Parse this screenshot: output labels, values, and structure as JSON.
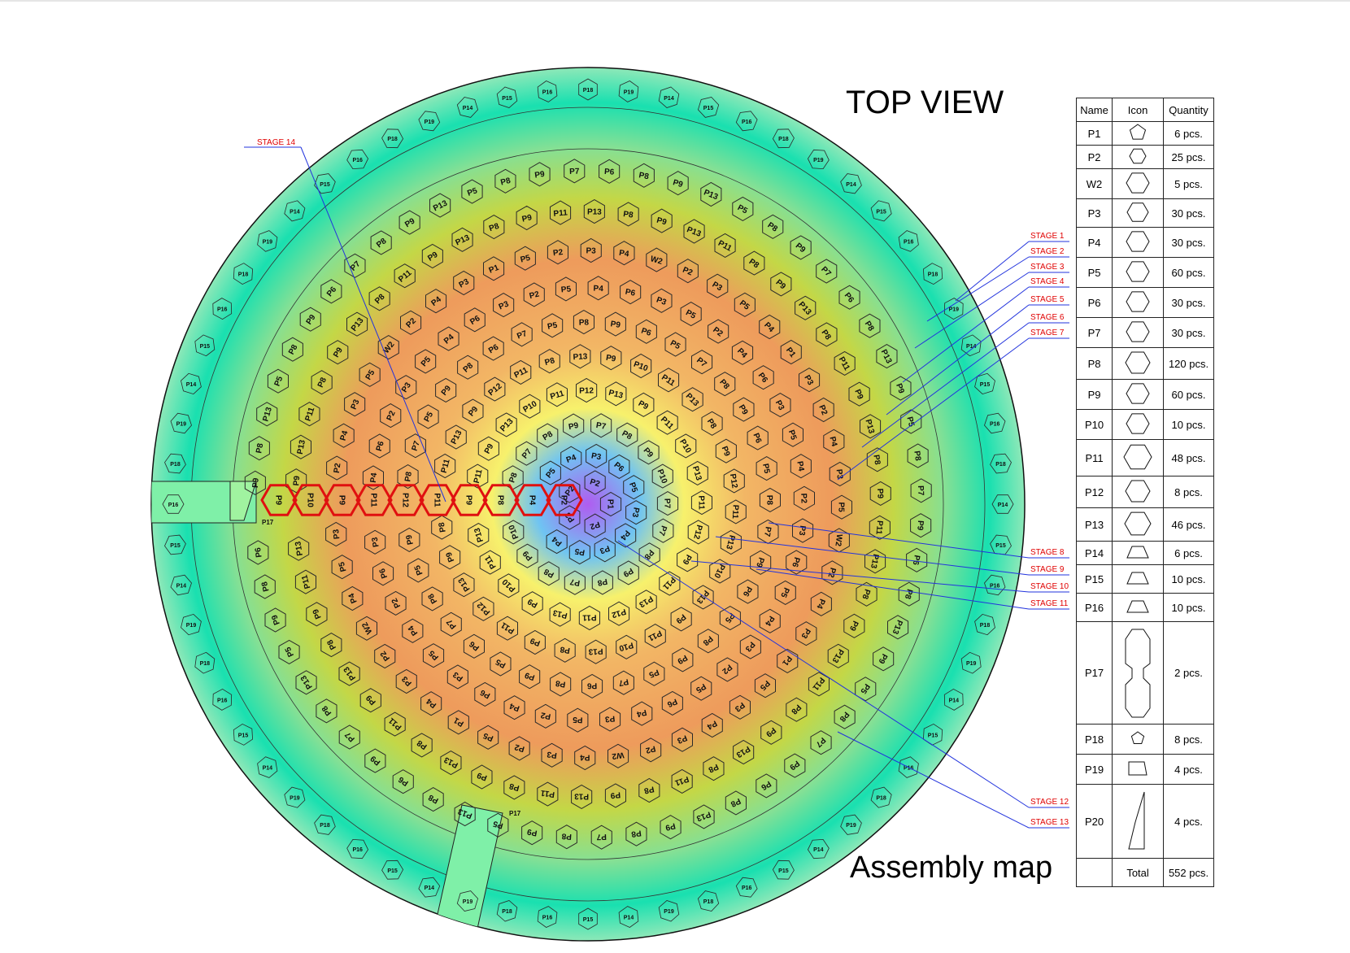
{
  "labels": {
    "top_view": "TOP VIEW",
    "assembly_map": "Assembly map"
  },
  "table": {
    "headers": [
      "Name",
      "Icon",
      "Quantity"
    ],
    "rows": [
      {
        "name": "P1",
        "qty": "6 pcs.",
        "icon": "pentagon-icon"
      },
      {
        "name": "P2",
        "qty": "25 pcs.",
        "icon": "hexagon-icon"
      },
      {
        "name": "W2",
        "qty": "5 pcs.",
        "icon": "hexagon-icon"
      },
      {
        "name": "P3",
        "qty": "30 pcs.",
        "icon": "hexagon-icon"
      },
      {
        "name": "P4",
        "qty": "30 pcs.",
        "icon": "hexagon-icon"
      },
      {
        "name": "P5",
        "qty": "60 pcs.",
        "icon": "hexagon-icon"
      },
      {
        "name": "P6",
        "qty": "30 pcs.",
        "icon": "hexagon-icon"
      },
      {
        "name": "P7",
        "qty": "30 pcs.",
        "icon": "hexagon-icon"
      },
      {
        "name": "P8",
        "qty": "120 pcs.",
        "icon": "hexagon-icon"
      },
      {
        "name": "P9",
        "qty": "60 pcs.",
        "icon": "hexagon-icon"
      },
      {
        "name": "P10",
        "qty": "10 pcs.",
        "icon": "hexagon-icon"
      },
      {
        "name": "P11",
        "qty": "48 pcs.",
        "icon": "hexagon-icon"
      },
      {
        "name": "P12",
        "qty": "8 pcs.",
        "icon": "hexagon-icon"
      },
      {
        "name": "P13",
        "qty": "46  pcs.",
        "icon": "hexagon-icon"
      },
      {
        "name": "P14",
        "qty": "6 pcs.",
        "icon": "trapezoid-icon"
      },
      {
        "name": "P15",
        "qty": "10 pcs.",
        "icon": "trapezoid-icon"
      },
      {
        "name": "P16",
        "qty": "10 pcs.",
        "icon": "trapezoid-icon"
      },
      {
        "name": "P17",
        "qty": "2 pcs.",
        "icon": "connector-icon"
      },
      {
        "name": "P18",
        "qty": "8 pcs.",
        "icon": "small-pentagon-icon"
      },
      {
        "name": "P19",
        "qty": "4 pcs.",
        "icon": "quad-icon"
      },
      {
        "name": "P20",
        "qty": "4 pcs.",
        "icon": "blade-icon"
      }
    ],
    "total_label": "Total",
    "total_qty": "552 pcs."
  },
  "stages": [
    "STAGE 1",
    "STAGE 2",
    "STAGE 3",
    "STAGE 4",
    "STAGE 5",
    "STAGE 6",
    "STAGE 7",
    "STAGE 8",
    "STAGE 9",
    "STAGE 10",
    "STAGE 11",
    "STAGE 12",
    "STAGE 13",
    "STAGE 14"
  ],
  "highlight_row": [
    "P9",
    "P10",
    "P9",
    "P11",
    "P12",
    "P11",
    "P9",
    "P8",
    "P4",
    "P2"
  ],
  "rings": [
    {
      "labels": [
        "P1",
        "P2",
        "P3",
        "P2",
        "P2"
      ],
      "color": "#c77ae6"
    },
    {
      "labels": [
        "P3",
        "P4",
        "P3",
        "P5",
        "P4",
        "P5",
        "P3",
        "P5",
        "P4",
        "P3",
        "P6",
        "P5"
      ],
      "color": "#7cc7ef"
    },
    {
      "labels": [
        "P7",
        "P8",
        "P9",
        "P8",
        "P7",
        "P8",
        "P9",
        "P10",
        "P9",
        "P8",
        "P7",
        "P8",
        "P9",
        "P7",
        "P8",
        "P9",
        "P10",
        "P7"
      ],
      "color": "#f5f07a"
    },
    {
      "labels": [
        "P9",
        "P11",
        "P13",
        "P12",
        "P11",
        "P13",
        "P9",
        "P10",
        "P11",
        "P13",
        "P12",
        "P11",
        "P9",
        "P13",
        "P10",
        "P11",
        "P12",
        "P13",
        "P9",
        "P11",
        "P10",
        "P13",
        "P11",
        "P12"
      ],
      "color": "#eadc5a"
    },
    {
      "labels": [
        "P13",
        "P9",
        "P11",
        "P10",
        "P13",
        "P8",
        "P9",
        "P11",
        "P12",
        "P13",
        "P9",
        "P8",
        "P10",
        "P11",
        "P13",
        "P9",
        "P12",
        "P11",
        "P8",
        "P13",
        "P9",
        "P10",
        "P11",
        "P13",
        "P8",
        "P9",
        "P12",
        "P11",
        "P13",
        "P10"
      ],
      "color": "#f3b866"
    },
    {
      "labels": [
        "P8",
        "P9",
        "P5",
        "P7",
        "P6",
        "P8",
        "P9",
        "P5",
        "P6",
        "P7",
        "P8",
        "P5",
        "P9",
        "P6",
        "P8",
        "P7",
        "P5",
        "P9",
        "P8",
        "P6",
        "P7",
        "P5",
        "P8",
        "P9",
        "P6",
        "P5",
        "P7",
        "P8",
        "P9",
        "P6",
        "P5",
        "P8",
        "P7",
        "P9",
        "P6",
        "P5"
      ],
      "color": "#f0a15c"
    },
    {
      "labels": [
        "P5",
        "P6",
        "P4",
        "P3",
        "P5",
        "P2",
        "P4",
        "P6",
        "P3",
        "P5",
        "P4",
        "P2",
        "P6",
        "P3",
        "P5",
        "P4",
        "P6",
        "P2",
        "P3",
        "P5",
        "P4",
        "P6",
        "P3",
        "P2",
        "P5",
        "P4",
        "P6",
        "P3",
        "P5",
        "P2",
        "P4",
        "P6",
        "P3",
        "P5",
        "P4",
        "P2",
        "P3",
        "P6",
        "P5",
        "P4",
        "P3",
        "P2"
      ],
      "color": "#e9ae5a"
    },
    {
      "labels": [
        "P3",
        "P2",
        "W2",
        "P4",
        "P3",
        "P2",
        "P5",
        "P1",
        "P4",
        "P3",
        "P2",
        "W2",
        "P4",
        "P5",
        "P3",
        "P1",
        "P2",
        "P4",
        "P3",
        "P5",
        "W2",
        "P2",
        "P4",
        "P3",
        "P1",
        "P5",
        "P2",
        "P3",
        "P4",
        "W2",
        "P2",
        "P3",
        "P5",
        "P4",
        "P1",
        "P3",
        "P2",
        "P4",
        "P3",
        "P5",
        "W2",
        "P2",
        "P4",
        "P3",
        "P1",
        "P5",
        "P3",
        "P4"
      ],
      "color": "#c8d94a"
    },
    {
      "labels": [
        "P8",
        "P9",
        "P13",
        "P11",
        "P8",
        "P9",
        "P13",
        "P8",
        "P11",
        "P9",
        "P13",
        "P8",
        "P9",
        "P11",
        "P13",
        "P8",
        "P9",
        "P13",
        "P11",
        "P8",
        "P9",
        "P13",
        "P8",
        "P11",
        "P9",
        "P13",
        "P8",
        "P9",
        "P11",
        "P13",
        "P8",
        "P9",
        "P13",
        "P11",
        "P8",
        "P9",
        "P13",
        "P8",
        "P11",
        "P9",
        "P13",
        "P8",
        "P9",
        "P11",
        "P13",
        "P8",
        "P9",
        "P13",
        "P11",
        "P8",
        "P9",
        "P13",
        "P8",
        "P11"
      ],
      "color": "#8fe0a0"
    },
    {
      "labels": [
        "P7",
        "P8",
        "P9",
        "P5",
        "P13",
        "P8",
        "P6",
        "P9",
        "P7",
        "P8",
        "P13",
        "P5",
        "P9",
        "P8",
        "P6",
        "P7",
        "P9",
        "P8",
        "P13",
        "P5",
        "P8",
        "P9",
        "P6",
        "P7",
        "P8",
        "P9",
        "P13",
        "P5",
        "P8",
        "P9",
        "P7",
        "P6",
        "P8",
        "P9",
        "P13",
        "P5",
        "P8",
        "P9",
        "P7",
        "P6",
        "P8",
        "P13",
        "P9",
        "P5",
        "P8",
        "P7",
        "P9",
        "P6",
        "P8",
        "P13",
        "P9",
        "P5",
        "P8",
        "P7",
        "P9",
        "P6",
        "P8",
        "P13",
        "P9",
        "P8"
      ],
      "color": "#93e6b8"
    }
  ],
  "edge_pieces": [
    "P14",
    "P15",
    "P16",
    "P18",
    "P19"
  ],
  "corridor_labels": [
    "P17",
    "P17"
  ]
}
